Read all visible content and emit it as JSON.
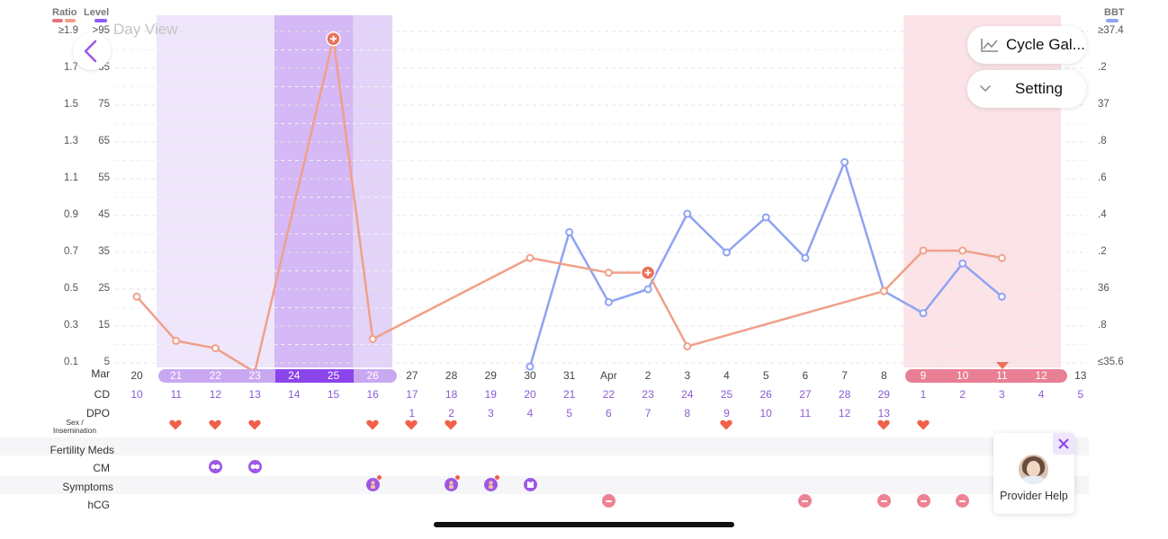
{
  "header": {
    "ratio_label": "Ratio",
    "level_label": "Level",
    "bbt_label": "BBT",
    "view_title": "Day View"
  },
  "colors": {
    "ratio_line": "#f0a08a",
    "ratio_bar_red": "#e7737e",
    "level_bar": "#8b5cf6",
    "bbt_line": "#8fa3f3",
    "fertile_light": "#efe6fb",
    "fertile_mid": "#e3d3f8",
    "ovulation_band": "#d5b8f6",
    "period_band": "#fbe3e7",
    "cd_purple": "#8a5cd6"
  },
  "ratio_axis": [
    "≥1.9",
    "1.7",
    "1.5",
    "1.3",
    "1.1",
    "0.9",
    "0.7",
    "0.5",
    "0.3",
    "0.1"
  ],
  "level_axis": [
    ">95",
    "85",
    "75",
    "65",
    "55",
    "45",
    "35",
    "25",
    "15",
    "5"
  ],
  "bbt_axis": [
    "≥37.4",
    ".2",
    "37",
    ".8",
    ".6",
    ".4",
    ".2",
    "36",
    ".8",
    "≤35.6"
  ],
  "buttons": {
    "back": "back",
    "cycle": "Cycle Gal...",
    "setting": "Setting"
  },
  "provider": {
    "label": "Provider Help"
  },
  "row_labels": {
    "month": "Mar",
    "cd": "CD",
    "dpo": "DPO",
    "sex": "Sex /",
    "sex2": "Insemination",
    "meds": "Fertility Meds",
    "cm": "CM",
    "symptoms": "Symptoms",
    "hcg": "hCG"
  },
  "dates": [
    "20",
    "21",
    "22",
    "23",
    "24",
    "25",
    "26",
    "27",
    "28",
    "29",
    "30",
    "31",
    "Apr",
    "2",
    "3",
    "4",
    "5",
    "6",
    "7",
    "8",
    "9",
    "10",
    "11",
    "12",
    "13"
  ],
  "cd": [
    "10",
    "11",
    "12",
    "13",
    "14",
    "15",
    "16",
    "17",
    "18",
    "19",
    "20",
    "21",
    "22",
    "23",
    "24",
    "25",
    "26",
    "27",
    "28",
    "29",
    "1",
    "2",
    "3",
    "4",
    "5"
  ],
  "dpo": [
    "",
    "",
    "",
    "",
    "",
    "",
    "",
    "1",
    "2",
    "3",
    "4",
    "5",
    "6",
    "7",
    "8",
    "9",
    "10",
    "11",
    "12",
    "13",
    "",
    "",
    "",
    "",
    ""
  ],
  "sex_days": [
    1,
    2,
    3,
    6,
    7,
    8,
    15,
    19,
    20
  ],
  "cm_days": [
    2,
    3
  ],
  "symptom_days": [
    6,
    8,
    9,
    10
  ],
  "hcg_days": [
    12,
    17,
    19,
    20,
    21
  ],
  "chart_data": {
    "type": "line",
    "title": "",
    "x": [
      "Mar 20",
      "Mar 21",
      "Mar 22",
      "Mar 23",
      "Mar 24",
      "Mar 25",
      "Mar 26",
      "Mar 27",
      "Mar 28",
      "Mar 29",
      "Mar 30",
      "Mar 31",
      "Apr 1",
      "Apr 2",
      "Apr 3",
      "Apr 4",
      "Apr 5",
      "Apr 6",
      "Apr 7",
      "Apr 8",
      "Apr 9",
      "Apr 10",
      "Apr 11",
      "Apr 12",
      "Apr 13"
    ],
    "series": [
      {
        "name": "Ratio",
        "values": [
          0.46,
          0.22,
          0.18,
          0.05,
          null,
          1.86,
          0.23,
          null,
          null,
          null,
          0.67,
          null,
          0.59,
          0.59,
          0.19,
          null,
          null,
          null,
          null,
          0.49,
          0.71,
          0.71,
          0.67,
          null,
          null
        ]
      },
      {
        "name": "BBT",
        "values": [
          null,
          null,
          null,
          null,
          null,
          null,
          null,
          null,
          null,
          null,
          35.58,
          36.31,
          35.93,
          36.0,
          36.41,
          36.2,
          36.39,
          36.17,
          36.69,
          35.99,
          35.87,
          36.14,
          35.96,
          null,
          null
        ]
      }
    ],
    "ratio_range": [
      0.1,
      1.9
    ],
    "bbt_range": [
      35.6,
      37.4
    ],
    "shaded": {
      "fertile": [
        "Mar 21",
        "Mar 26"
      ],
      "ovulation": [
        "Mar 24",
        "Mar 25"
      ],
      "period": [
        "Apr 9",
        "Apr 12"
      ]
    }
  }
}
